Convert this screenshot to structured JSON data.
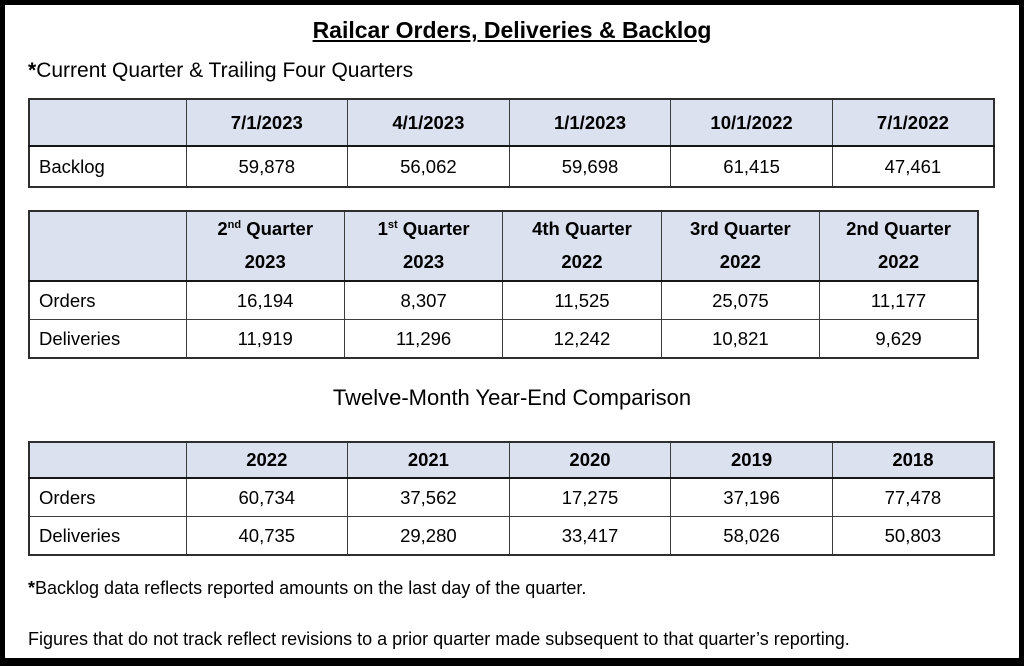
{
  "colors": {
    "header_bg": "#dce1ef",
    "table_border": "#3c3c3c"
  },
  "page": {
    "title": "Railcar Orders, Deliveries & Backlog",
    "subtitle": {
      "star": "*",
      "text": "Current Quarter & Trailing Four Quarters"
    },
    "comparison_heading": "Twelve-Month Year-End Comparison",
    "notes": [
      {
        "star": "*",
        "text": "Backlog data reflects reported amounts on the last day of the quarter."
      },
      {
        "star": "",
        "text": "Figures that do not track reflect revisions to a prior quarter made subsequent to that quarter’s reporting."
      }
    ]
  },
  "backlog_table": {
    "columns": [
      "7/1/2023",
      "4/1/2023",
      "1/1/2023",
      "10/1/2022",
      "7/1/2022"
    ],
    "row_label": "Backlog",
    "values": [
      "59,878",
      "56,062",
      "59,698",
      "61,415",
      "47,461"
    ]
  },
  "quarterly_table": {
    "columns": [
      {
        "num": "2",
        "ord": "nd",
        "word": "Quarter",
        "year": "2023"
      },
      {
        "num": "1",
        "ord": "st",
        "word": "Quarter",
        "year": "2023"
      },
      {
        "num": "4th",
        "ord": "",
        "word": "Quarter",
        "year": "2022"
      },
      {
        "num": "3rd",
        "ord": "",
        "word": "Quarter",
        "year": "2022"
      },
      {
        "num": "2nd",
        "ord": "",
        "word": "Quarter",
        "year": "2022"
      }
    ],
    "rows": [
      {
        "label": "Orders",
        "values": [
          "16,194",
          "8,307",
          "11,525",
          "25,075",
          "11,177"
        ]
      },
      {
        "label": "Deliveries",
        "values": [
          "11,919",
          "11,296",
          "12,242",
          "10,821",
          "9,629"
        ]
      }
    ]
  },
  "yearly_table": {
    "columns": [
      "2022",
      "2021",
      "2020",
      "2019",
      "2018"
    ],
    "rows": [
      {
        "label": "Orders",
        "values": [
          "60,734",
          "37,562",
          "17,275",
          "37,196",
          "77,478"
        ]
      },
      {
        "label": "Deliveries",
        "values": [
          "40,735",
          "29,280",
          "33,417",
          "58,026",
          "50,803"
        ]
      }
    ]
  }
}
